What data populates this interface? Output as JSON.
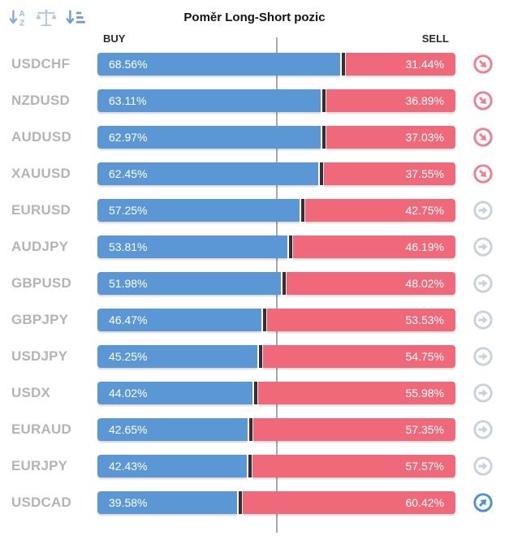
{
  "header": {
    "title": "Poměr Long-Short pozic",
    "buy_label": "BUY",
    "sell_label": "SELL"
  },
  "toolbar": {
    "icons": [
      {
        "name": "sort-alphabetical-icon"
      },
      {
        "name": "scales-icon"
      },
      {
        "name": "sort-amount-icon"
      }
    ]
  },
  "colors": {
    "buy_bar": "#5b97d4",
    "sell_bar": "#f0697b",
    "segment_divider": "#3a2d33",
    "sell_signal_icon": "#ed8191",
    "neutral_signal_icon": "#c9d2dc",
    "buy_signal_icon": "#4b90d8",
    "center_line": "#a9a9a9",
    "symbol_text": "#b4b4b4"
  },
  "rows": [
    {
      "symbol": "USDCHF",
      "buy_pct": 68.56,
      "sell_pct": 31.44,
      "buy_label": "68.56%",
      "sell_label": "31.44%",
      "signal": "sell"
    },
    {
      "symbol": "NZDUSD",
      "buy_pct": 63.11,
      "sell_pct": 36.89,
      "buy_label": "63.11%",
      "sell_label": "36.89%",
      "signal": "sell"
    },
    {
      "symbol": "AUDUSD",
      "buy_pct": 62.97,
      "sell_pct": 37.03,
      "buy_label": "62.97%",
      "sell_label": "37.03%",
      "signal": "sell"
    },
    {
      "symbol": "XAUUSD",
      "buy_pct": 62.45,
      "sell_pct": 37.55,
      "buy_label": "62.45%",
      "sell_label": "37.55%",
      "signal": "sell"
    },
    {
      "symbol": "EURUSD",
      "buy_pct": 57.25,
      "sell_pct": 42.75,
      "buy_label": "57.25%",
      "sell_label": "42.75%",
      "signal": "neutral"
    },
    {
      "symbol": "AUDJPY",
      "buy_pct": 53.81,
      "sell_pct": 46.19,
      "buy_label": "53.81%",
      "sell_label": "46.19%",
      "signal": "neutral"
    },
    {
      "symbol": "GBPUSD",
      "buy_pct": 51.98,
      "sell_pct": 48.02,
      "buy_label": "51.98%",
      "sell_label": "48.02%",
      "signal": "neutral"
    },
    {
      "symbol": "GBPJPY",
      "buy_pct": 46.47,
      "sell_pct": 53.53,
      "buy_label": "46.47%",
      "sell_label": "53.53%",
      "signal": "neutral"
    },
    {
      "symbol": "USDJPY",
      "buy_pct": 45.25,
      "sell_pct": 54.75,
      "buy_label": "45.25%",
      "sell_label": "54.75%",
      "signal": "neutral"
    },
    {
      "symbol": "USDX",
      "buy_pct": 44.02,
      "sell_pct": 55.98,
      "buy_label": "44.02%",
      "sell_label": "55.98%",
      "signal": "neutral"
    },
    {
      "symbol": "EURAUD",
      "buy_pct": 42.65,
      "sell_pct": 57.35,
      "buy_label": "42.65%",
      "sell_label": "57.35%",
      "signal": "neutral"
    },
    {
      "symbol": "EURJPY",
      "buy_pct": 42.43,
      "sell_pct": 57.57,
      "buy_label": "42.43%",
      "sell_label": "57.57%",
      "signal": "neutral"
    },
    {
      "symbol": "USDCAD",
      "buy_pct": 39.58,
      "sell_pct": 60.42,
      "buy_label": "39.58%",
      "sell_label": "60.42%",
      "signal": "buy"
    }
  ],
  "chart_data": {
    "type": "bar",
    "orientation": "horizontal",
    "stacked": true,
    "title": "Poměr Long-Short pozic",
    "categories": [
      "USDCHF",
      "NZDUSD",
      "AUDUSD",
      "XAUUSD",
      "EURUSD",
      "AUDJPY",
      "GBPUSD",
      "GBPJPY",
      "USDJPY",
      "USDX",
      "EURAUD",
      "EURJPY",
      "USDCAD"
    ],
    "series": [
      {
        "name": "BUY",
        "color": "#5b97d4",
        "values": [
          68.56,
          63.11,
          62.97,
          62.45,
          57.25,
          53.81,
          51.98,
          46.47,
          45.25,
          44.02,
          42.65,
          42.43,
          39.58
        ]
      },
      {
        "name": "SELL",
        "color": "#f0697b",
        "values": [
          31.44,
          36.89,
          37.03,
          37.55,
          42.75,
          46.19,
          48.02,
          53.53,
          54.75,
          55.98,
          57.35,
          57.57,
          60.42
        ]
      }
    ],
    "xlim": [
      0,
      100
    ],
    "annotations": [
      "50% center reference line"
    ],
    "legend_position": "top (BUY left, SELL right)",
    "signals": {
      "sell": [
        "USDCHF",
        "NZDUSD",
        "AUDUSD",
        "XAUUSD"
      ],
      "neutral": [
        "EURUSD",
        "AUDJPY",
        "GBPUSD",
        "GBPJPY",
        "USDJPY",
        "USDX",
        "EURAUD",
        "EURJPY"
      ],
      "buy": [
        "USDCAD"
      ]
    }
  }
}
